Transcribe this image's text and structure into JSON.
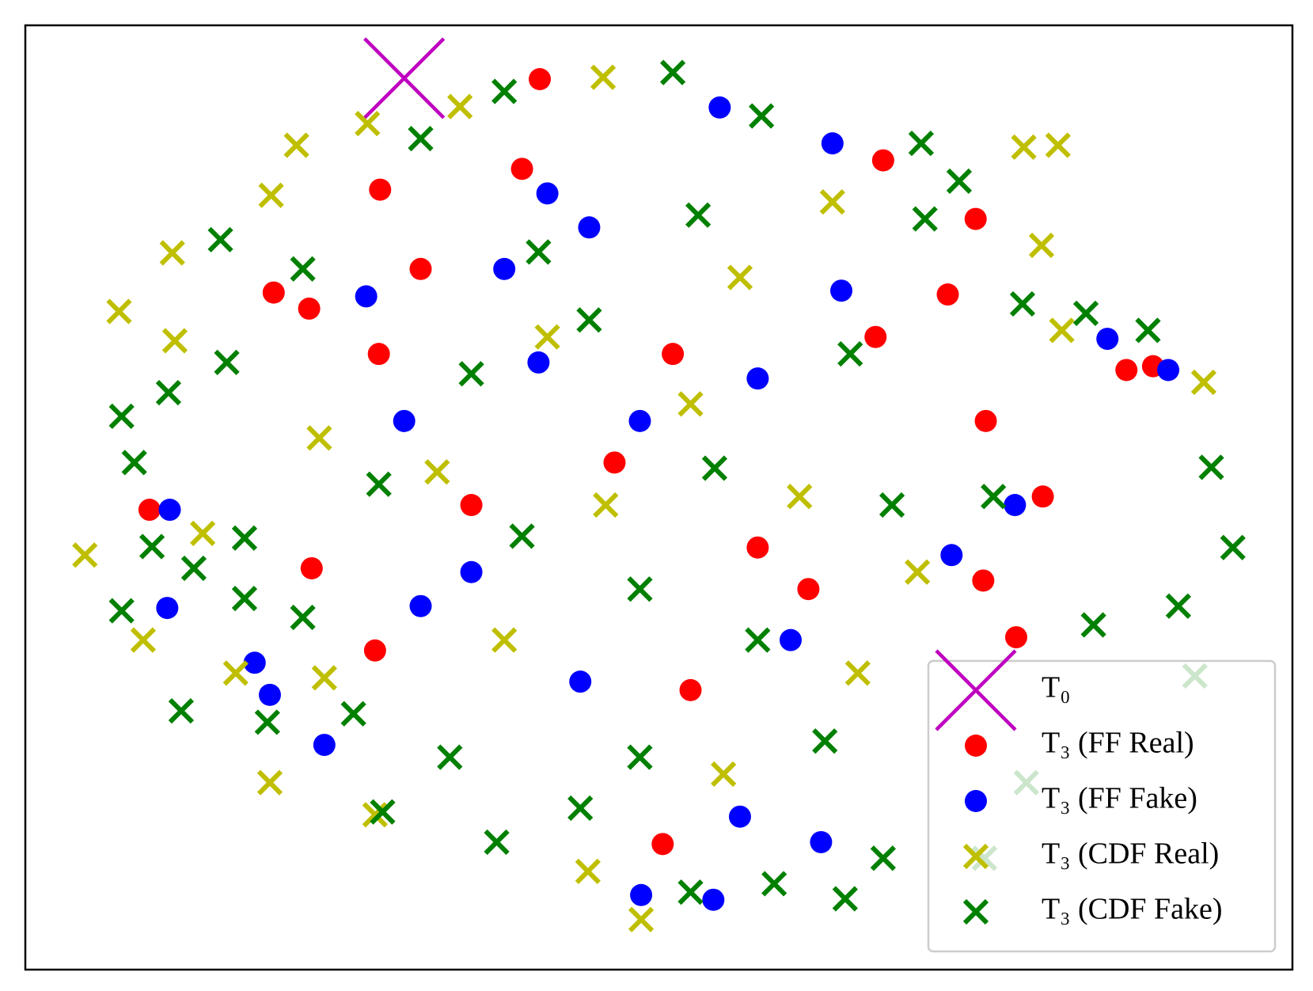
{
  "chart_data": {
    "type": "scatter",
    "xlim": [
      0,
      100
    ],
    "ylim": [
      0,
      100
    ],
    "grid": false,
    "legend": "lower right",
    "series": [
      {
        "name": "T₀",
        "color": "#bf00bf",
        "marker": "x",
        "x": [
          29.9
        ],
        "y": [
          94.4
        ]
      },
      {
        "name": "T₃ (FF Real)",
        "color": "#ff0000",
        "marker": "o",
        "x": [
          40.6,
          28,
          19.6,
          22.4,
          9.8,
          22.6,
          27.6,
          50.3,
          78.2,
          86.9,
          89,
          75,
          72.8,
          67.7,
          75.8,
          80.3,
          75.6,
          39.2,
          31.2,
          51.1,
          46.5,
          57.8,
          52.5,
          61.8,
          67.1,
          35.2,
          27.9
        ],
        "y": [
          94.3,
          82.6,
          71.7,
          70,
          48.7,
          42.5,
          33.8,
          13.3,
          35.2,
          63.5,
          63.9,
          79.5,
          71.5,
          85.7,
          58.1,
          50.1,
          41.2,
          84.8,
          74.2,
          65.2,
          53.7,
          44.7,
          29.6,
          40.3,
          67,
          49.2,
          65.2
        ]
      },
      {
        "name": "T₃ (FF Fake)",
        "color": "#0000ff",
        "marker": "o",
        "x": [
          54.8,
          26.9,
          11.4,
          11.2,
          18.1,
          19.3,
          23.6,
          48.6,
          54.3,
          56.4,
          62.8,
          85.4,
          90.2,
          78.1,
          73.1,
          64.4,
          63.7,
          41.2,
          37.8,
          44.5,
          29.9,
          35.2,
          40.5,
          48.5,
          57.8,
          60.4,
          31.2,
          43.8
        ],
        "y": [
          91.3,
          71.3,
          48.7,
          38.3,
          32.5,
          29.1,
          23.8,
          7.9,
          7.4,
          16.2,
          13.5,
          66.8,
          63.5,
          49.2,
          43.9,
          71.9,
          87.5,
          82.2,
          74.2,
          78.6,
          58.1,
          42.1,
          64.3,
          58.1,
          62.6,
          34.9,
          38.5,
          30.5
        ]
      },
      {
        "name": "T₃ (CDF Real)",
        "color": "#bfbf00",
        "marker": "x",
        "x": [
          45.6,
          34.3,
          27,
          21.4,
          19.4,
          11.6,
          7.4,
          11.8,
          4.7,
          14,
          9.3,
          16.6,
          23.6,
          19.3,
          27.6,
          44.4,
          48.6,
          78.8,
          81.5,
          80.2,
          93,
          81.8,
          63.7,
          41.2,
          52.5,
          56.4,
          45.8,
          61.1,
          70.4,
          37.8,
          55.1,
          65.7,
          23.2,
          32.5
        ],
        "y": [
          94.5,
          91.4,
          89.6,
          87.3,
          82,
          75.9,
          69.7,
          66.6,
          43.9,
          46.2,
          34.9,
          31.4,
          30.9,
          19.8,
          16.4,
          10.4,
          5.3,
          87.1,
          87.3,
          76.7,
          62.2,
          67.7,
          81.3,
          67,
          59.9,
          73.3,
          49.2,
          50.1,
          42.1,
          34.9,
          20.7,
          31.4,
          56.3,
          52.7
        ]
      },
      {
        "name": "T₃ (CDF Fake)",
        "color": "#008000",
        "marker": "x",
        "x": [
          51.1,
          37.8,
          58.1,
          70.7,
          73.7,
          31.2,
          15.4,
          21.9,
          15.9,
          7.6,
          8.6,
          11.3,
          17.3,
          10,
          13.3,
          7.6,
          17.3,
          12.3,
          19.1,
          25.9,
          28.2,
          33.5,
          37.2,
          43.8,
          52.5,
          59.1,
          64.7,
          67.7,
          75.7,
          79,
          84.3,
          92.3,
          95.3,
          91,
          93.6,
          88.6,
          83.7,
          78.7,
          71,
          65.1,
          54.4,
          44.5,
          35.2,
          27.9,
          39.2,
          48.5,
          57.8,
          68.4,
          76.4,
          63.1,
          48.5,
          40.5,
          53.1,
          21.9
        ],
        "y": [
          95,
          93,
          90.4,
          87.5,
          83.5,
          88,
          77.3,
          74.2,
          64.3,
          58.6,
          53.7,
          61.1,
          45.7,
          44.8,
          42.5,
          38,
          39.3,
          27.4,
          26.2,
          27.1,
          16.7,
          22.5,
          13.5,
          17.1,
          8.2,
          9.1,
          7.5,
          11.8,
          11.8,
          19.8,
          36.5,
          31.1,
          44.7,
          38.5,
          53.2,
          67.7,
          69.5,
          70.5,
          79.5,
          65.2,
          53.1,
          68.8,
          63.1,
          51.4,
          45.9,
          40.3,
          34.9,
          49.2,
          50.1,
          24.2,
          22.5,
          76,
          79.9,
          37.3
        ]
      }
    ]
  }
}
